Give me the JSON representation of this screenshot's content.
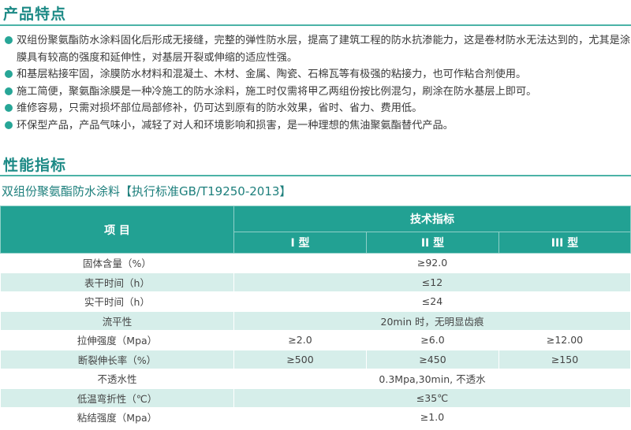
{
  "features": {
    "title": "产品特点",
    "bullets": [
      "双组份聚氨酯防水涂料固化后形成无接缝，完整的弹性防水层，提高了建筑工程的防水抗渗能力，这是卷材防水无法达到的，尤其是涂膜具有较高的强度和延伸性，对基层开裂或伸缩的适应性强。",
      "和基层粘接牢固，涂膜防水材料和混凝土、木材、金属、陶瓷、石棉瓦等有极强的粘接力，也可作粘合剂使用。",
      "施工简便，聚氨酯涂膜是一种冷施工的防水涂料，施工时仅需将甲乙两组份按比例混匀，刷涂在防水基层上即可。",
      "维修容易，只需对损坏部位局部修补，仍可达到原有的防水效果，省时、省力、费用低。",
      "环保型产品，产品气味小，减轻了对人和环境影响和损害，是一种理想的焦油聚氨酯替代产品。"
    ]
  },
  "specs": {
    "title": "性能指标",
    "subtitle": "双组份聚氨酯防水涂料【执行标准GB/T19250-2013】",
    "header": {
      "item": "项 目",
      "group": "技术指标",
      "types": [
        "I 型",
        "II 型",
        "III 型"
      ]
    },
    "rows": [
      {
        "item": "固体含量（%）",
        "merged": "≥92.0"
      },
      {
        "item": "表干时间（h）",
        "merged": "≤12"
      },
      {
        "item": "实干时间（h）",
        "merged": "≤24"
      },
      {
        "item": "流平性",
        "merged": "20min 时，无明显齿痕"
      },
      {
        "item": "拉伸强度（Mpa）",
        "values": [
          "≥2.0",
          "≥6.0",
          "≥12.00"
        ]
      },
      {
        "item": "断裂伸长率（%）",
        "values": [
          "≥500",
          "≥450",
          "≥150"
        ]
      },
      {
        "item": "不透水性",
        "merged": "0.3Mpa,30min, 不透水"
      },
      {
        "item": "低温弯折性（℃）",
        "merged": "≤35℃"
      },
      {
        "item": "粘结强度（Mpa）",
        "merged": "≥1.0"
      }
    ]
  },
  "colors": {
    "accent": "#22a193",
    "alt_row": "#d6eeea"
  }
}
